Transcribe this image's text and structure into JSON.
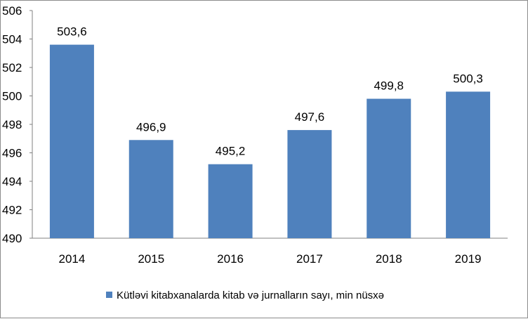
{
  "chart_data": {
    "type": "bar",
    "categories": [
      "2014",
      "2015",
      "2016",
      "2017",
      "2018",
      "2019"
    ],
    "series": [
      {
        "name": "Kütləvi kitabxanalarda kitab və jurnalların sayı, min nüsxə",
        "values": [
          503.6,
          496.9,
          495.2,
          497.6,
          499.8,
          500.3
        ],
        "labels": [
          "503,6",
          "496,9",
          "495,2",
          "497,6",
          "499,8",
          "500,3"
        ],
        "color": "#4f81bd"
      }
    ],
    "ylim": [
      490,
      506
    ],
    "yticks": [
      "490",
      "492",
      "494",
      "496",
      "498",
      "500",
      "502",
      "504",
      "506"
    ],
    "grid": false,
    "legend": "bottom-center",
    "title": "",
    "xlabel": "",
    "ylabel": ""
  }
}
